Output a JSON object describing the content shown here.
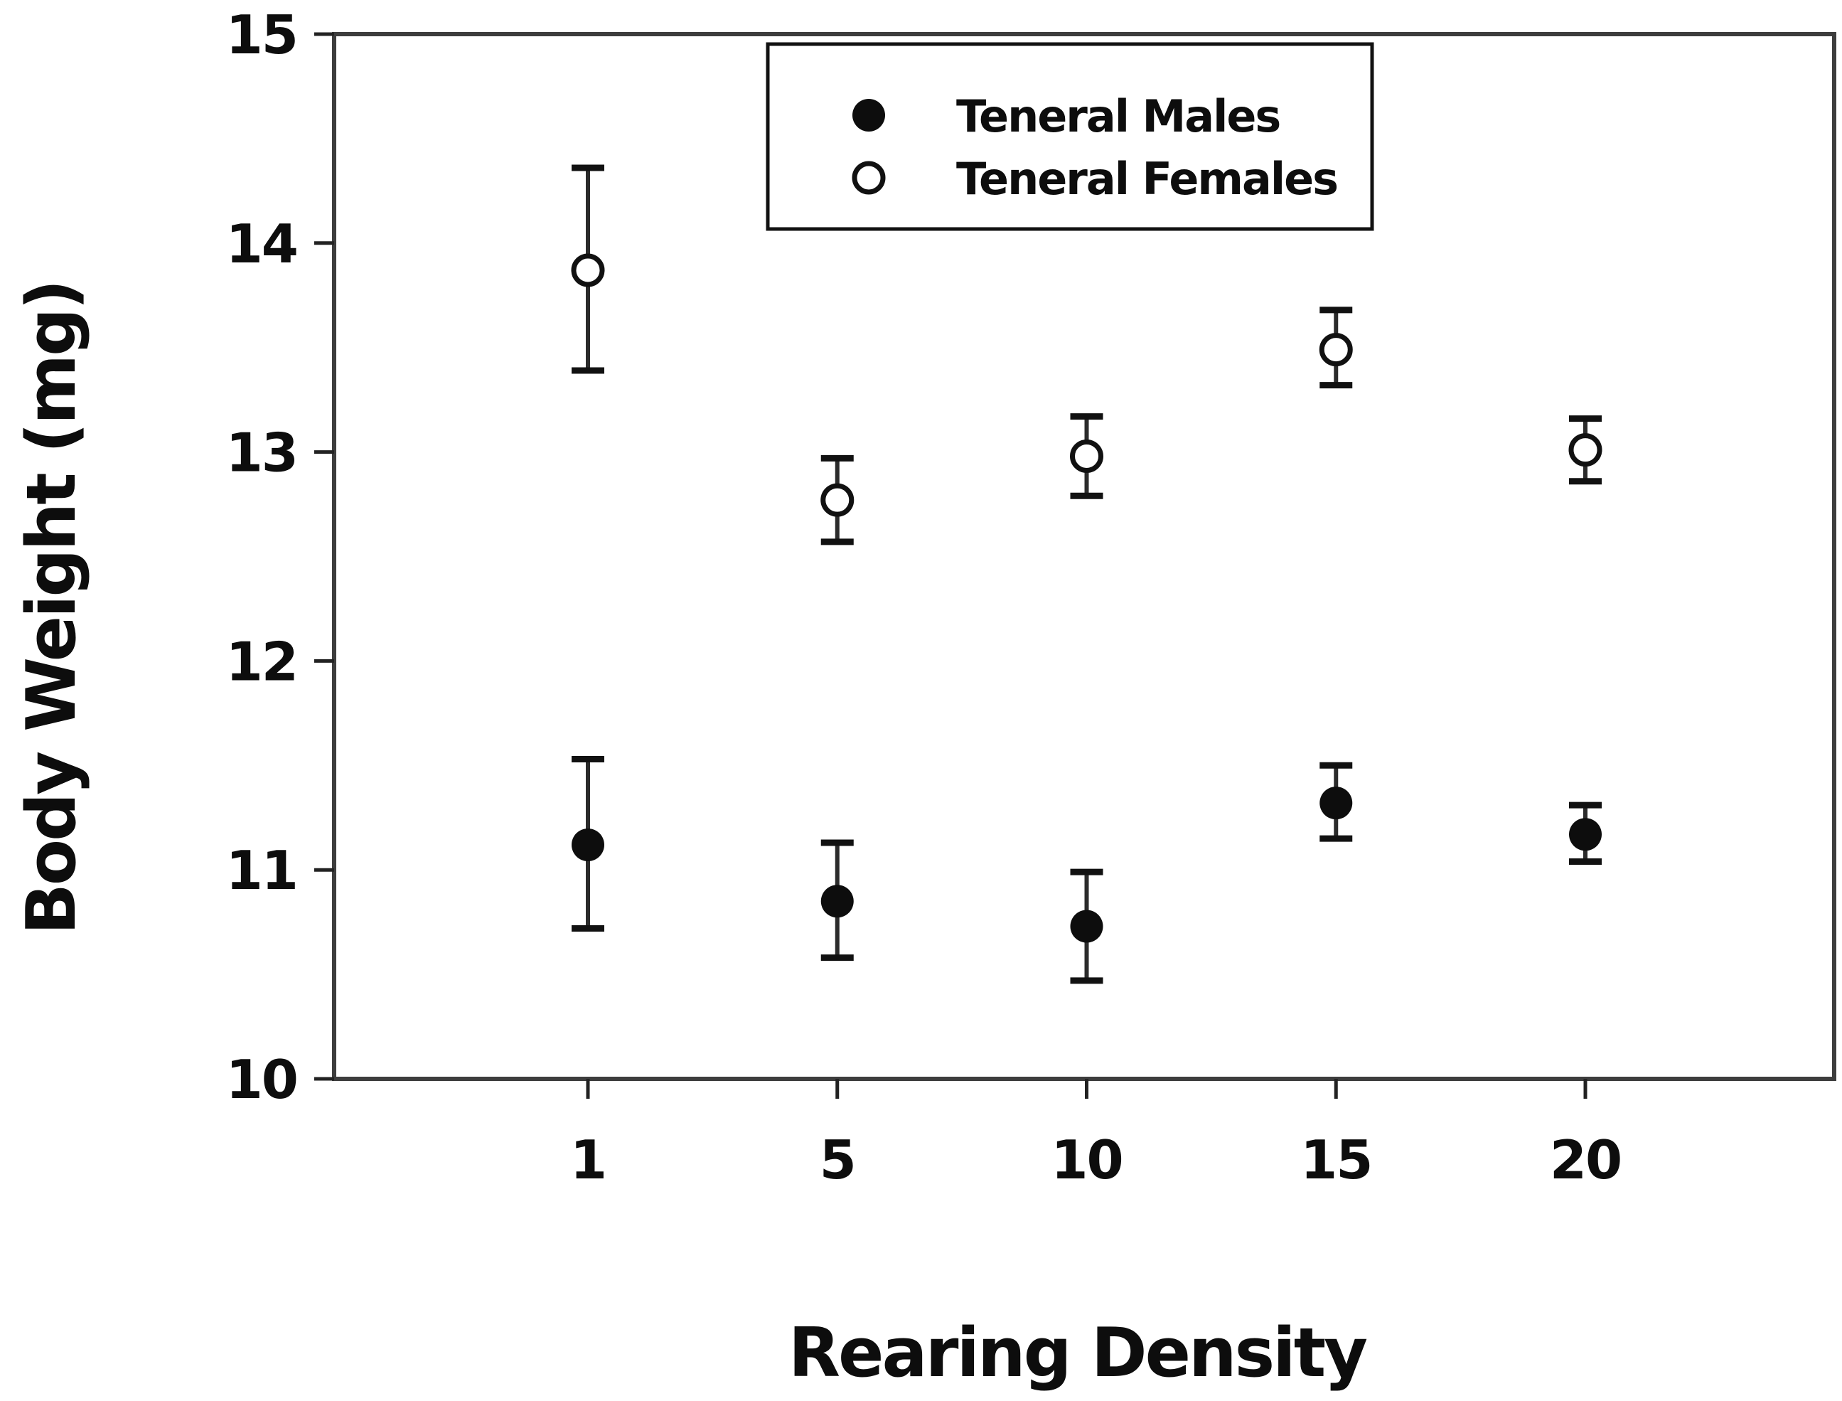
{
  "figure": {
    "background": "#ffffff",
    "ink_color": "#0d0d0d",
    "frame_color": "#3d3d3d"
  },
  "chart_data": {
    "type": "scatter",
    "title": "",
    "xlabel": "Rearing  Density",
    "ylabel": "Body Weight (mg)",
    "categories": [
      "1",
      "5",
      "10",
      "15",
      "20"
    ],
    "ylim": [
      10,
      15
    ],
    "yticks": [
      15,
      14,
      13,
      12,
      11,
      10
    ],
    "grid": false,
    "error_bars": true,
    "legend": {
      "position": "top-center-inside",
      "border": true,
      "entries": [
        {
          "label": "Teneral Males",
          "marker": "filled-circle"
        },
        {
          "label": "Teneral Females",
          "marker": "open-circle"
        }
      ]
    },
    "series": [
      {
        "name": "Teneral Males",
        "marker": "filled-circle",
        "values": [
          11.12,
          10.85,
          10.73,
          11.32,
          11.17
        ],
        "err_lower": [
          0.4,
          0.27,
          0.26,
          0.17,
          0.13
        ],
        "err_upper": [
          0.41,
          0.28,
          0.26,
          0.18,
          0.14
        ]
      },
      {
        "name": "Teneral Females",
        "marker": "open-circle",
        "values": [
          13.87,
          12.77,
          12.98,
          13.49,
          13.01
        ],
        "err_lower": [
          0.48,
          0.2,
          0.19,
          0.17,
          0.15
        ],
        "err_upper": [
          0.49,
          0.2,
          0.19,
          0.19,
          0.15
        ]
      }
    ]
  }
}
